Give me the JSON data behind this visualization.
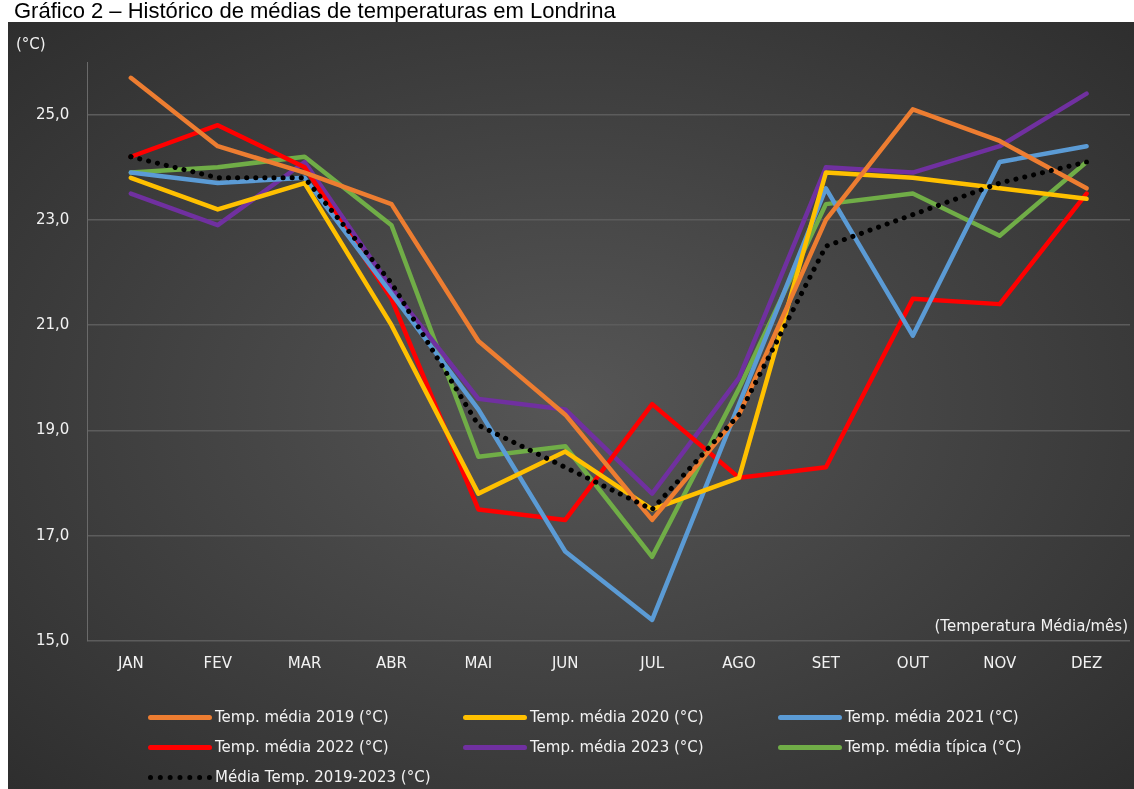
{
  "chart_data": {
    "type": "line",
    "title": "Gráfico 2 – Histórico de médias de temperaturas em Londrina",
    "ylabel": "(°C)",
    "annotations": [
      "(Temperatura Média/mês)"
    ],
    "categories": [
      "JAN",
      "FEV",
      "MAR",
      "ABR",
      "MAI",
      "JUN",
      "JUL",
      "AGO",
      "SET",
      "OUT",
      "NOV",
      "DEZ"
    ],
    "ylim": [
      15,
      26
    ],
    "yticks": [
      {
        "value": 15,
        "label": "15,0"
      },
      {
        "value": 17,
        "label": "17,0"
      },
      {
        "value": 19,
        "label": "19,0"
      },
      {
        "value": 21,
        "label": "21,0"
      },
      {
        "value": 23,
        "label": "23,0"
      },
      {
        "value": 25,
        "label": "25,0"
      }
    ],
    "grid": "y",
    "legend": "bottom",
    "marker": "none",
    "series": [
      {
        "name": "Temp. média 2019 (°C)",
        "color": "#ed7d31",
        "values": [
          25.7,
          24.4,
          23.9,
          23.3,
          20.7,
          19.3,
          17.3,
          19.3,
          23.0,
          25.1,
          24.5,
          23.6
        ]
      },
      {
        "name": "Temp. média 2020 (°C)",
        "color": "#ffc000",
        "values": [
          23.8,
          23.2,
          23.7,
          21.0,
          17.8,
          18.6,
          17.5,
          18.1,
          23.9,
          23.8,
          23.6,
          23.4
        ]
      },
      {
        "name": "Temp. média 2021 (°C)",
        "color": "#5b9bd5",
        "values": [
          23.9,
          23.7,
          23.8,
          21.6,
          19.4,
          16.7,
          15.4,
          19.5,
          23.6,
          20.8,
          24.1,
          24.4
        ]
      },
      {
        "name": "Temp. média 2022 (°C)",
        "color": "#ff0000",
        "values": [
          24.2,
          24.8,
          24.0,
          21.5,
          17.5,
          17.3,
          19.5,
          18.1,
          18.3,
          21.5,
          21.4,
          23.5
        ]
      },
      {
        "name": "Temp. média 2023 (°C)",
        "color": "#7030a0",
        "values": [
          23.5,
          22.9,
          24.1,
          21.7,
          19.6,
          19.4,
          17.8,
          20.0,
          24.0,
          23.9,
          24.4,
          25.4
        ]
      },
      {
        "name": "Temp. média típica (°C)",
        "color": "#70ad47",
        "values": [
          23.9,
          24.0,
          24.2,
          22.9,
          18.5,
          18.7,
          16.6,
          19.8,
          23.3,
          23.5,
          22.7,
          24.1
        ]
      },
      {
        "name": "Média Temp. 2019-2023 (°C)",
        "color": "#000000",
        "line_style": "dotted",
        "values": [
          24.2,
          23.8,
          23.8,
          21.8,
          19.1,
          18.3,
          17.5,
          19.3,
          22.5,
          23.1,
          23.7,
          24.1
        ]
      }
    ]
  }
}
